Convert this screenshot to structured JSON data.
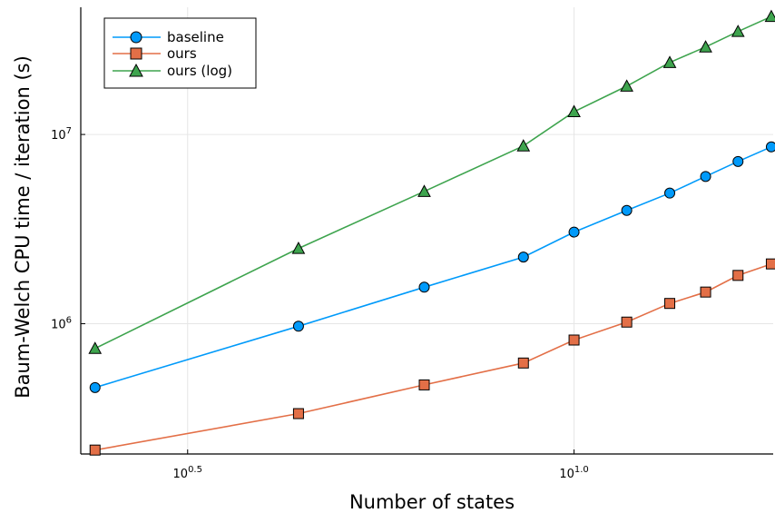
{
  "chart_data": {
    "type": "line",
    "title": "",
    "xlabel": "Number of states",
    "ylabel": "Baum-Welch CPU time / iteration (s)",
    "xscale": "log10",
    "yscale": "log10",
    "xlim": [
      2.3,
      18.1
    ],
    "ylim": [
      205000,
      47000000
    ],
    "x_ticks": [
      {
        "value": 3.1623,
        "base": "10",
        "exp": "0.5"
      },
      {
        "value": 10,
        "base": "10",
        "exp": "1.0"
      }
    ],
    "y_ticks": [
      {
        "value": 1000000,
        "base": "10",
        "exp": "6"
      },
      {
        "value": 10000000,
        "base": "10",
        "exp": "7"
      }
    ],
    "grid": true,
    "legend_position": "top-left",
    "x": [
      2.4,
      4.4,
      7.2,
      9.2,
      10.0,
      11.7,
      13.6,
      16.2,
      18.0,
      20.0
    ],
    "series": [
      {
        "name": "baseline",
        "color": "#009AFA",
        "marker": "circle",
        "x": [
          2.4,
          4.4,
          6.4,
          8.6,
          10.0,
          11.7,
          13.3,
          14.8,
          16.3,
          18.0
        ],
        "values": [
          460000,
          970000,
          1560000,
          2250000,
          3050000,
          3970000,
          4900000,
          6000000,
          7200000,
          8600000
        ]
      },
      {
        "name": "ours",
        "color": "#E36F47",
        "marker": "square",
        "x": [
          2.4,
          4.4,
          6.4,
          8.6,
          10.0,
          11.7,
          13.3,
          14.8,
          16.3,
          18.0
        ],
        "values": [
          215000,
          335000,
          475000,
          620000,
          820000,
          1020000,
          1280000,
          1470000,
          1800000,
          2070000
        ]
      },
      {
        "name": "ours (log)",
        "color": "#3EA44E",
        "marker": "triangle",
        "x": [
          2.4,
          4.4,
          6.4,
          8.6,
          10.0,
          11.7,
          13.3,
          14.8,
          16.3,
          18.0
        ],
        "values": [
          740000,
          2500000,
          5000000,
          8700000,
          13200000,
          18000000,
          24000000,
          29000000,
          35000000,
          42000000
        ]
      }
    ]
  }
}
